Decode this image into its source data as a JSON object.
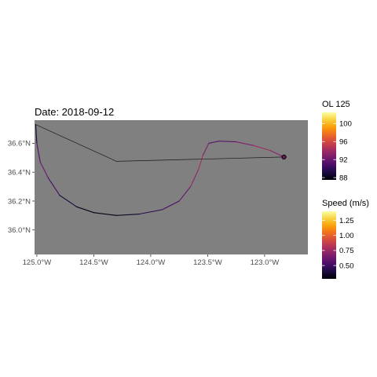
{
  "chart_data": {
    "type": "line",
    "title": "Date: 2018-09-12",
    "xlabel": "",
    "ylabel": "",
    "xlim": [
      -125.02,
      -122.62
    ],
    "ylim": [
      35.83,
      36.76
    ],
    "x_ticks": [
      {
        "value": -125.0,
        "label": "125.0°W"
      },
      {
        "value": -124.5,
        "label": "124.5°W"
      },
      {
        "value": -124.0,
        "label": "124.0°W"
      },
      {
        "value": -123.5,
        "label": "123.5°W"
      },
      {
        "value": -123.0,
        "label": "123.0°W"
      }
    ],
    "y_ticks": [
      {
        "value": 36.0,
        "label": "36.0°N"
      },
      {
        "value": 36.2,
        "label": "36.2°N"
      },
      {
        "value": 36.4,
        "label": "36.4°N"
      },
      {
        "value": 36.6,
        "label": "36.6°N"
      }
    ],
    "grid": false,
    "panel_background": "#808080",
    "series": [
      {
        "role": "track",
        "points": [
          {
            "lon": -125.01,
            "lat": 36.73,
            "speed": 0.3
          },
          {
            "lon": -125.0,
            "lat": 36.6,
            "speed": 0.45
          },
          {
            "lon": -124.97,
            "lat": 36.47,
            "speed": 0.65
          },
          {
            "lon": -124.9,
            "lat": 36.36,
            "speed": 0.6
          },
          {
            "lon": -124.8,
            "lat": 36.24,
            "speed": 0.45
          },
          {
            "lon": -124.65,
            "lat": 36.16,
            "speed": 0.35
          },
          {
            "lon": -124.5,
            "lat": 36.12,
            "speed": 0.3
          },
          {
            "lon": -124.3,
            "lat": 36.1,
            "speed": 0.3
          },
          {
            "lon": -124.1,
            "lat": 36.11,
            "speed": 0.4
          },
          {
            "lon": -123.9,
            "lat": 36.14,
            "speed": 0.5
          },
          {
            "lon": -123.75,
            "lat": 36.2,
            "speed": 0.55
          },
          {
            "lon": -123.65,
            "lat": 36.3,
            "speed": 0.65
          },
          {
            "lon": -123.58,
            "lat": 36.42,
            "speed": 0.8
          },
          {
            "lon": -123.54,
            "lat": 36.52,
            "speed": 0.75
          },
          {
            "lon": -123.49,
            "lat": 36.6,
            "speed": 0.6
          },
          {
            "lon": -123.4,
            "lat": 36.615,
            "speed": 0.55
          },
          {
            "lon": -123.25,
            "lat": 36.61,
            "speed": 0.6
          },
          {
            "lon": -123.1,
            "lat": 36.585,
            "speed": 0.75
          },
          {
            "lon": -122.95,
            "lat": 36.55,
            "speed": 0.8
          },
          {
            "lon": -122.83,
            "lat": 36.505,
            "speed": 0.6
          }
        ]
      },
      {
        "role": "return",
        "points": [
          {
            "lon": -122.83,
            "lat": 36.505,
            "speed": 0.6
          },
          {
            "lon": -124.3,
            "lat": 36.475,
            "speed": 0.65
          },
          {
            "lon": -125.01,
            "lat": 36.73,
            "speed": 0.3
          }
        ]
      }
    ],
    "current_position": {
      "lon": -122.83,
      "lat": 36.505
    },
    "legends": [
      {
        "title": "OL 125",
        "type": "colorbar",
        "colormap": "inferno",
        "range": [
          87.5,
          102.5
        ],
        "ticks": [
          {
            "value": 88,
            "label": "88"
          },
          {
            "value": 92,
            "label": "92"
          },
          {
            "value": 96,
            "label": "96"
          },
          {
            "value": 100,
            "label": "100"
          }
        ]
      },
      {
        "title": "Speed (m/s)",
        "type": "colorbar",
        "colormap": "inferno",
        "range": [
          0.28,
          1.4
        ],
        "ticks": [
          {
            "value": 0.5,
            "label": "0.50"
          },
          {
            "value": 0.75,
            "label": "0.75"
          },
          {
            "value": 1.0,
            "label": "1.00"
          },
          {
            "value": 1.25,
            "label": "1.25"
          }
        ]
      }
    ],
    "colormap_stops": [
      "#000004",
      "#1b0c41",
      "#4a0c6b",
      "#781c6d",
      "#a52c60",
      "#cf4446",
      "#ed6925",
      "#fb9b06",
      "#f7d13d",
      "#fcffa4"
    ]
  }
}
